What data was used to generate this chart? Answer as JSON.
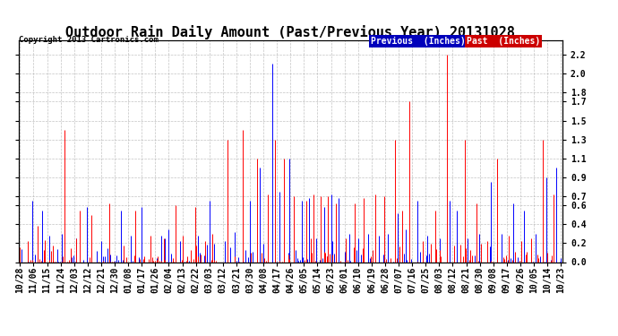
{
  "title": "Outdoor Rain Daily Amount (Past/Previous Year) 20131028",
  "copyright": "Copyright 2013 Cartronics.com",
  "legend_labels": [
    "Previous  (Inches)",
    "Past  (Inches)"
  ],
  "legend_bg_colors": [
    "#0000bb",
    "#cc0000"
  ],
  "series_blue_color": "#0000ff",
  "series_red_color": "#ff0000",
  "yticks": [
    0.0,
    0.2,
    0.4,
    0.6,
    0.7,
    0.9,
    1.1,
    1.3,
    1.5,
    1.7,
    1.8,
    2.0,
    2.2
  ],
  "ylim": [
    0.0,
    2.35
  ],
  "bg_color": "#ffffff",
  "grid_color": "#aaaaaa",
  "title_fontsize": 11,
  "tick_fontsize": 7,
  "n_days": 366,
  "x_labels": [
    "10/28",
    "11/06",
    "11/15",
    "11/24",
    "12/03",
    "12/12",
    "12/21",
    "12/30",
    "01/08",
    "01/17",
    "01/26",
    "02/04",
    "02/13",
    "02/22",
    "03/03",
    "03/12",
    "03/21",
    "03/30",
    "04/08",
    "04/17",
    "04/26",
    "05/05",
    "05/14",
    "05/23",
    "06/01",
    "06/10",
    "06/19",
    "06/28",
    "07/07",
    "07/16",
    "07/25",
    "08/03",
    "08/12",
    "08/21",
    "08/30",
    "09/08",
    "09/17",
    "09/26",
    "10/05",
    "10/14",
    "10/23"
  ],
  "blue_spikes_idx": [
    8,
    15,
    20,
    28,
    38,
    45,
    55,
    68,
    75,
    82,
    95,
    100,
    108,
    120,
    128,
    138,
    145,
    155,
    162,
    170,
    175,
    182,
    190,
    195,
    200,
    205,
    210,
    215,
    222,
    228,
    235,
    242,
    248,
    255,
    260,
    268,
    275,
    283,
    290,
    295,
    302,
    310,
    318,
    325,
    333,
    340,
    348,
    355,
    362
  ],
  "blue_spikes_val": [
    0.65,
    0.55,
    0.28,
    0.3,
    0.25,
    0.58,
    0.22,
    0.55,
    0.28,
    0.58,
    0.28,
    0.35,
    0.22,
    0.28,
    0.65,
    0.22,
    0.32,
    0.65,
    1.0,
    2.1,
    0.75,
    1.1,
    0.65,
    0.68,
    0.25,
    0.58,
    0.72,
    0.68,
    0.3,
    0.25,
    0.3,
    0.28,
    0.3,
    0.52,
    0.35,
    0.65,
    0.28,
    0.25,
    0.65,
    0.55,
    0.25,
    0.3,
    0.85,
    0.3,
    0.62,
    0.55,
    0.3,
    0.9,
    1.0
  ],
  "red_spikes_idx": [
    5,
    12,
    22,
    30,
    40,
    48,
    60,
    70,
    78,
    88,
    97,
    105,
    110,
    118,
    125,
    130,
    140,
    150,
    160,
    167,
    172,
    178,
    185,
    193,
    198,
    203,
    208,
    213,
    220,
    226,
    232,
    240,
    246,
    253,
    258,
    263,
    272,
    280,
    288,
    293,
    300,
    308,
    315,
    322,
    330,
    338,
    345,
    353,
    360
  ],
  "red_spikes_val": [
    0.22,
    0.38,
    0.18,
    1.4,
    0.55,
    0.5,
    0.62,
    0.18,
    0.55,
    0.28,
    0.25,
    0.6,
    0.28,
    0.58,
    0.22,
    0.3,
    1.3,
    1.4,
    1.1,
    0.72,
    1.3,
    1.1,
    0.7,
    0.65,
    0.72,
    0.7,
    0.7,
    0.62,
    0.25,
    0.62,
    0.68,
    0.72,
    0.7,
    1.3,
    0.55,
    1.7,
    0.22,
    0.55,
    2.2,
    0.18,
    1.3,
    0.62,
    0.22,
    1.1,
    0.28,
    0.22,
    0.25,
    1.3,
    0.72
  ]
}
